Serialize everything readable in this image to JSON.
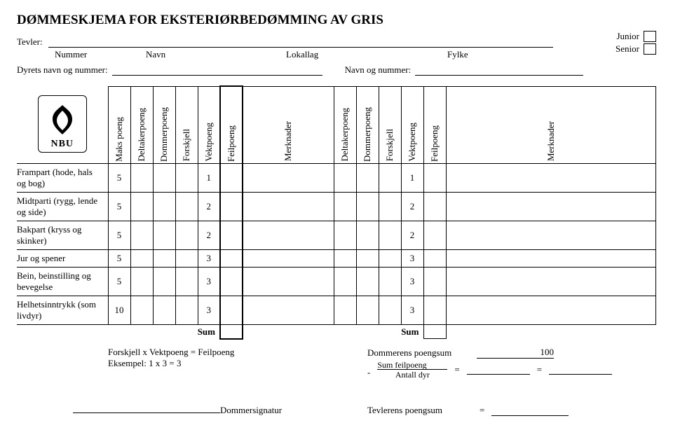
{
  "title": "DØMMESKJEMA FOR EKSTERIØRBEDØMMING AV GRIS",
  "header": {
    "tevler_label": "Tevler:",
    "sub_nummer": "Nummer",
    "sub_navn": "Navn",
    "sub_lokallag": "Lokallag",
    "sub_fylke": "Fylke",
    "dyrets_label": "Dyrets navn og nummer:",
    "navn_nummer_label": "Navn og nummer:",
    "junior": "Junior",
    "senior": "Senior"
  },
  "logo_text": "NBU",
  "columns": {
    "maks": "Maks poeng",
    "deltaker": "Deltakerpoeng",
    "dommer": "Dommerpoeng",
    "forskjell": "Forskjell",
    "vekt": "Vektpoeng",
    "feil": "Feilpoeng",
    "merk": "Merknader"
  },
  "rows": [
    {
      "label": "Frampart (hode, hals og bog)",
      "maks": "5",
      "vekt": "1"
    },
    {
      "label": "Midtparti (rygg, lende og side)",
      "maks": "5",
      "vekt": "2"
    },
    {
      "label": "Bakpart (kryss og skinker)",
      "maks": "5",
      "vekt": "2"
    },
    {
      "label": "Jur og spener",
      "maks": "5",
      "vekt": "3"
    },
    {
      "label": "Bein, beinstilling og bevegelse",
      "maks": "5",
      "vekt": "3"
    },
    {
      "label": "Helhetsinntrykk (som livdyr)",
      "maks": "10",
      "vekt": "3"
    }
  ],
  "sum_label": "Sum",
  "footer": {
    "example_line1": "Forskjell x Vektpoeng = Feilpoeng",
    "example_line2": "Eksempel: 1 x 3 = 3",
    "dommerens": "Dommerens poengsum",
    "hundred": "100",
    "sum_feil": "Sum feilpoeng",
    "antall": "Antall dyr",
    "sig_label": "Dommersignatur",
    "tevlerens": "Tevlerens poengsum"
  }
}
